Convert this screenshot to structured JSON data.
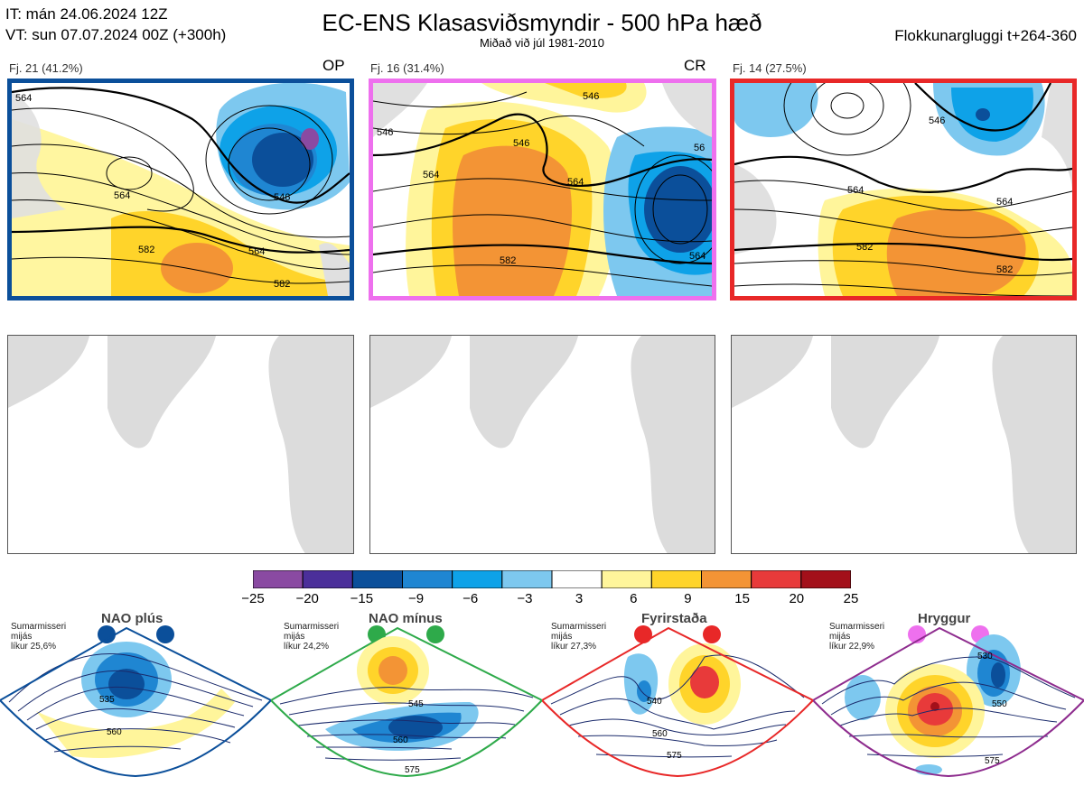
{
  "header": {
    "it_line": "IT: mán 24.06.2024 12Z",
    "vt_line": "VT: sun 07.07.2024 00Z  (+300h)",
    "title": "EC-ENS Klasasviðsmyndir - 500 hPa hæð",
    "subtitle": "Miðað við júl 1981-2010",
    "window": "Flokkunargluggi t+264-360"
  },
  "clusters": [
    {
      "label": "Fj. 21 (41.2%)",
      "tag": "OP",
      "border_color": "#0b4f9a",
      "contour_labels": [
        "564",
        "546",
        "564",
        "582",
        "564",
        "582"
      ]
    },
    {
      "label": "Fj. 16 (31.4%)",
      "tag": "CR",
      "border_color": "#ee70ee",
      "contour_labels": [
        "546",
        "546",
        "564",
        "546",
        "564",
        "564",
        "582",
        "56"
      ]
    },
    {
      "label": "Fj. 14 (27.5%)",
      "tag": "",
      "border_color": "#e82828",
      "contour_labels": [
        "546",
        "564",
        "564",
        "582",
        "582"
      ]
    }
  ],
  "colorbar": {
    "colors": [
      "#8a4aa2",
      "#4b2f9a",
      "#0b4f9a",
      "#1f86d2",
      "#0ea2e8",
      "#7dc8ef",
      "#ffffff",
      "#fff59b",
      "#ffd42a",
      "#f39435",
      "#e83a3a",
      "#a3101a"
    ],
    "labels": [
      "−25",
      "−20",
      "−15",
      "−9",
      "−6",
      "−3",
      "3",
      "6",
      "9",
      "15",
      "20",
      "25"
    ]
  },
  "regimes": [
    {
      "name": "NAO plús",
      "note": [
        "Sumarmisseri",
        "mijás",
        "líkur 25,6%"
      ],
      "dot_color": "#0b4f9a",
      "frame_color": "#0b4f9a",
      "contour_labels": [
        "535",
        "560"
      ]
    },
    {
      "name": "NAO mínus",
      "note": [
        "Sumarmisseri",
        "mijás",
        "líkur 24,2%"
      ],
      "dot_color": "#2eaa4a",
      "frame_color": "#2eaa4a",
      "contour_labels": [
        "545",
        "560",
        "575"
      ]
    },
    {
      "name": "Fyrirstaða",
      "note": [
        "Sumarmisseri",
        "mijás",
        "líkur 27,3%"
      ],
      "dot_color": "#e82828",
      "frame_color": "#e82828",
      "contour_labels": [
        "540",
        "560",
        "575"
      ]
    },
    {
      "name": "Hryggur",
      "note": [
        "Sumarmisseri",
        "mijás",
        "líkur 22,9%"
      ],
      "dot_color": "#ee70ee",
      "frame_color": "#8e2c8e",
      "contour_labels": [
        "530",
        "550",
        "575"
      ]
    }
  ]
}
